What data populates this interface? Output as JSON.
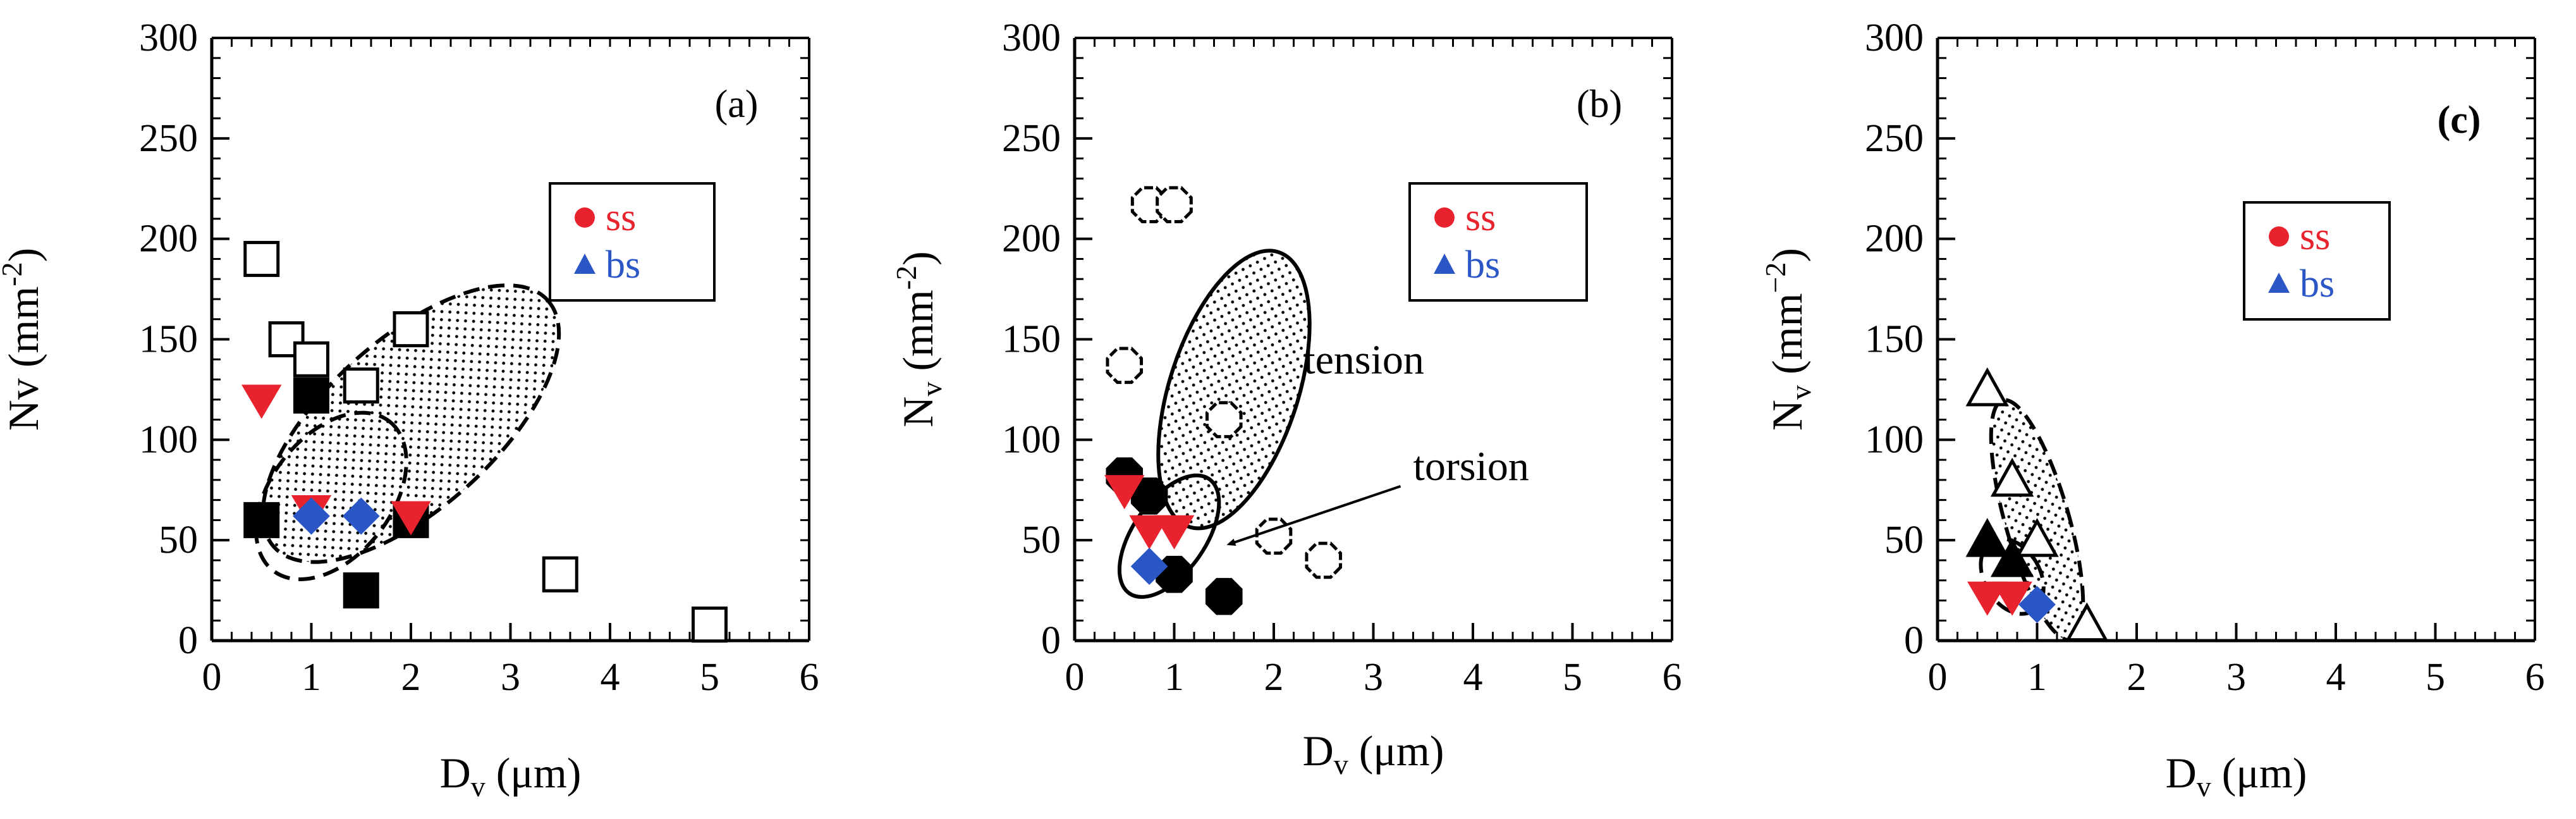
{
  "colors": {
    "ss": "#e8232e",
    "bs": "#2a56c6",
    "black": "#000000"
  },
  "chart_data": [
    {
      "type": "scatter",
      "panel": "(a)",
      "xlabel": "Dv (μm)",
      "ylabel": "Nv (mm-2)",
      "xlim": [
        0,
        6
      ],
      "ylim": [
        0,
        300
      ],
      "xticks": [
        "0",
        "1",
        "2",
        "3",
        "4",
        "5",
        "6"
      ],
      "yticks": [
        "0",
        "50",
        "100",
        "150",
        "200",
        "250",
        "300"
      ],
      "legend": [
        {
          "label": "ss",
          "marker": "circle",
          "color": "ss"
        },
        {
          "label": "bs",
          "marker": "triangle",
          "color": "bs"
        }
      ],
      "series": [
        {
          "name": "open squares",
          "marker": "square-open",
          "points": [
            [
              0.5,
              190
            ],
            [
              0.75,
              150
            ],
            [
              1.0,
              140
            ],
            [
              1.5,
              127
            ],
            [
              2.0,
              155
            ],
            [
              3.5,
              33
            ],
            [
              5.0,
              8
            ]
          ]
        },
        {
          "name": "filled squares",
          "marker": "square-filled",
          "points": [
            [
              0.5,
              60
            ],
            [
              1.0,
              122
            ],
            [
              1.5,
              25
            ],
            [
              2.0,
              60
            ]
          ]
        },
        {
          "name": "red down-triangles",
          "marker": "tri-down-red",
          "points": [
            [
              0.5,
              120
            ],
            [
              1.0,
              65
            ],
            [
              2.0,
              62
            ]
          ]
        },
        {
          "name": "blue diamonds",
          "marker": "diamond-blue",
          "points": [
            [
              1.0,
              62
            ],
            [
              1.5,
              62
            ]
          ]
        }
      ],
      "regions": [
        {
          "name": "dotted ellipse",
          "style": "dashed-dotted",
          "center": [
            2.0,
            108
          ],
          "rx": 1.85,
          "ry": 42,
          "angle_deg": -42
        },
        {
          "name": "inner ellipse",
          "style": "dashed",
          "center": [
            1.2,
            72
          ],
          "rx": 0.95,
          "ry": 30,
          "angle_deg": -52
        }
      ]
    },
    {
      "type": "scatter",
      "panel": "(b)",
      "xlabel": "Dv (μm)",
      "ylabel": "Nv (mm-2)",
      "xlim": [
        0,
        6
      ],
      "ylim": [
        0,
        300
      ],
      "xticks": [
        "0",
        "1",
        "2",
        "3",
        "4",
        "5",
        "6"
      ],
      "yticks": [
        "0",
        "50",
        "100",
        "150",
        "200",
        "250",
        "300"
      ],
      "legend": [
        {
          "label": "ss",
          "marker": "circle",
          "color": "ss"
        },
        {
          "label": "bs",
          "marker": "triangle",
          "color": "bs"
        }
      ],
      "annotations": [
        {
          "text": "tension",
          "at": [
            2.3,
            133
          ]
        },
        {
          "text": "torsion",
          "at": [
            3.4,
            80
          ],
          "arrow_to": [
            1.55,
            48
          ]
        }
      ],
      "series": [
        {
          "name": "open octagons",
          "marker": "octagon-open",
          "points": [
            [
              0.5,
              137
            ],
            [
              0.75,
              217
            ],
            [
              1.0,
              217
            ],
            [
              1.5,
              110
            ],
            [
              2.0,
              52
            ],
            [
              2.5,
              40
            ]
          ]
        },
        {
          "name": "filled octagons",
          "marker": "octagon-filled",
          "points": [
            [
              0.5,
              82
            ],
            [
              0.75,
              72
            ],
            [
              1.0,
              33
            ],
            [
              1.5,
              22
            ]
          ]
        },
        {
          "name": "red down-triangles",
          "marker": "tri-down-red",
          "points": [
            [
              0.5,
              75
            ],
            [
              0.75,
              55
            ],
            [
              1.0,
              55
            ]
          ]
        },
        {
          "name": "blue diamonds",
          "marker": "diamond-blue",
          "points": [
            [
              0.75,
              37
            ]
          ]
        }
      ],
      "regions": [
        {
          "name": "tension ellipse",
          "style": "solid-dotted",
          "center": [
            1.6,
            125
          ],
          "rx": 1.45,
          "ry": 32,
          "angle_deg": -72
        },
        {
          "name": "torsion ellipse",
          "style": "solid",
          "center": [
            0.95,
            52
          ],
          "rx": 0.7,
          "ry": 18,
          "angle_deg": -55
        }
      ]
    },
    {
      "type": "scatter",
      "panel": "(c)",
      "xlabel": "Dv (μm)",
      "ylabel": "Nv (mm−2)",
      "xlim": [
        0,
        6
      ],
      "ylim": [
        0,
        300
      ],
      "xticks": [
        "0",
        "1",
        "2",
        "3",
        "4",
        "5",
        "6"
      ],
      "yticks": [
        "0",
        "50",
        "100",
        "150",
        "200",
        "250",
        "300"
      ],
      "legend": [
        {
          "label": "ss",
          "marker": "circle",
          "color": "ss"
        },
        {
          "label": "bs",
          "marker": "triangle",
          "color": "bs"
        }
      ],
      "series": [
        {
          "name": "open triangles",
          "marker": "tri-up-open",
          "points": [
            [
              0.5,
              125
            ],
            [
              0.75,
              80
            ],
            [
              1.0,
              50
            ],
            [
              1.5,
              8
            ]
          ]
        },
        {
          "name": "filled triangles",
          "marker": "tri-up-filled",
          "points": [
            [
              0.5,
              50
            ],
            [
              0.75,
              40
            ]
          ]
        },
        {
          "name": "red down-triangles",
          "marker": "tri-down-red",
          "points": [
            [
              0.5,
              22
            ],
            [
              0.75,
              22
            ]
          ]
        },
        {
          "name": "blue diamonds",
          "marker": "diamond-blue",
          "points": [
            [
              1.0,
              18
            ]
          ]
        }
      ],
      "regions": [
        {
          "name": "dotted region",
          "style": "dashed-dotted",
          "center": [
            1.0,
            60
          ],
          "rx": 0.32,
          "ry": 62,
          "angle_deg": -16
        },
        {
          "name": "inner region",
          "style": "dashed",
          "center": [
            0.75,
            32
          ],
          "rx": 0.28,
          "ry": 20,
          "angle_deg": -30
        }
      ]
    }
  ]
}
